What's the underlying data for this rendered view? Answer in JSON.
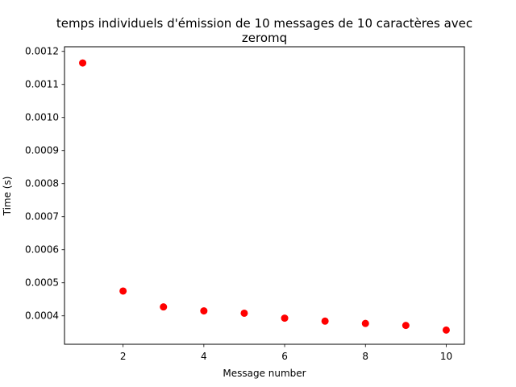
{
  "chart_data": {
    "type": "scatter",
    "title_line1": "temps individuels d'émission de 10 messages de 10 caractères avec",
    "title_line2": "zeromq",
    "xlabel": "Message number",
    "ylabel": "Time (s)",
    "x_ticks": [
      2,
      4,
      6,
      8,
      10
    ],
    "y_ticks": [
      0.0004,
      0.0005,
      0.0006,
      0.0007,
      0.0008,
      0.0009,
      0.001,
      0.0011,
      0.0012
    ],
    "x_tick_labels": [
      "2",
      "4",
      "6",
      "8",
      "10"
    ],
    "y_tick_labels": [
      "0.0004",
      "0.0005",
      "0.0006",
      "0.0007",
      "0.0008",
      "0.0009",
      "0.0010",
      "0.0011",
      "0.0012"
    ],
    "xlim": [
      0.55,
      10.45
    ],
    "ylim": [
      0.000314,
      0.001214
    ],
    "grid": false,
    "marker_color": "#ff0000",
    "x": [
      1,
      2,
      3,
      4,
      5,
      6,
      7,
      8,
      9,
      10
    ],
    "y": [
      0.001165,
      0.000475,
      0.000427,
      0.000415,
      0.000408,
      0.000393,
      0.000384,
      0.000377,
      0.000371,
      0.000357
    ]
  }
}
